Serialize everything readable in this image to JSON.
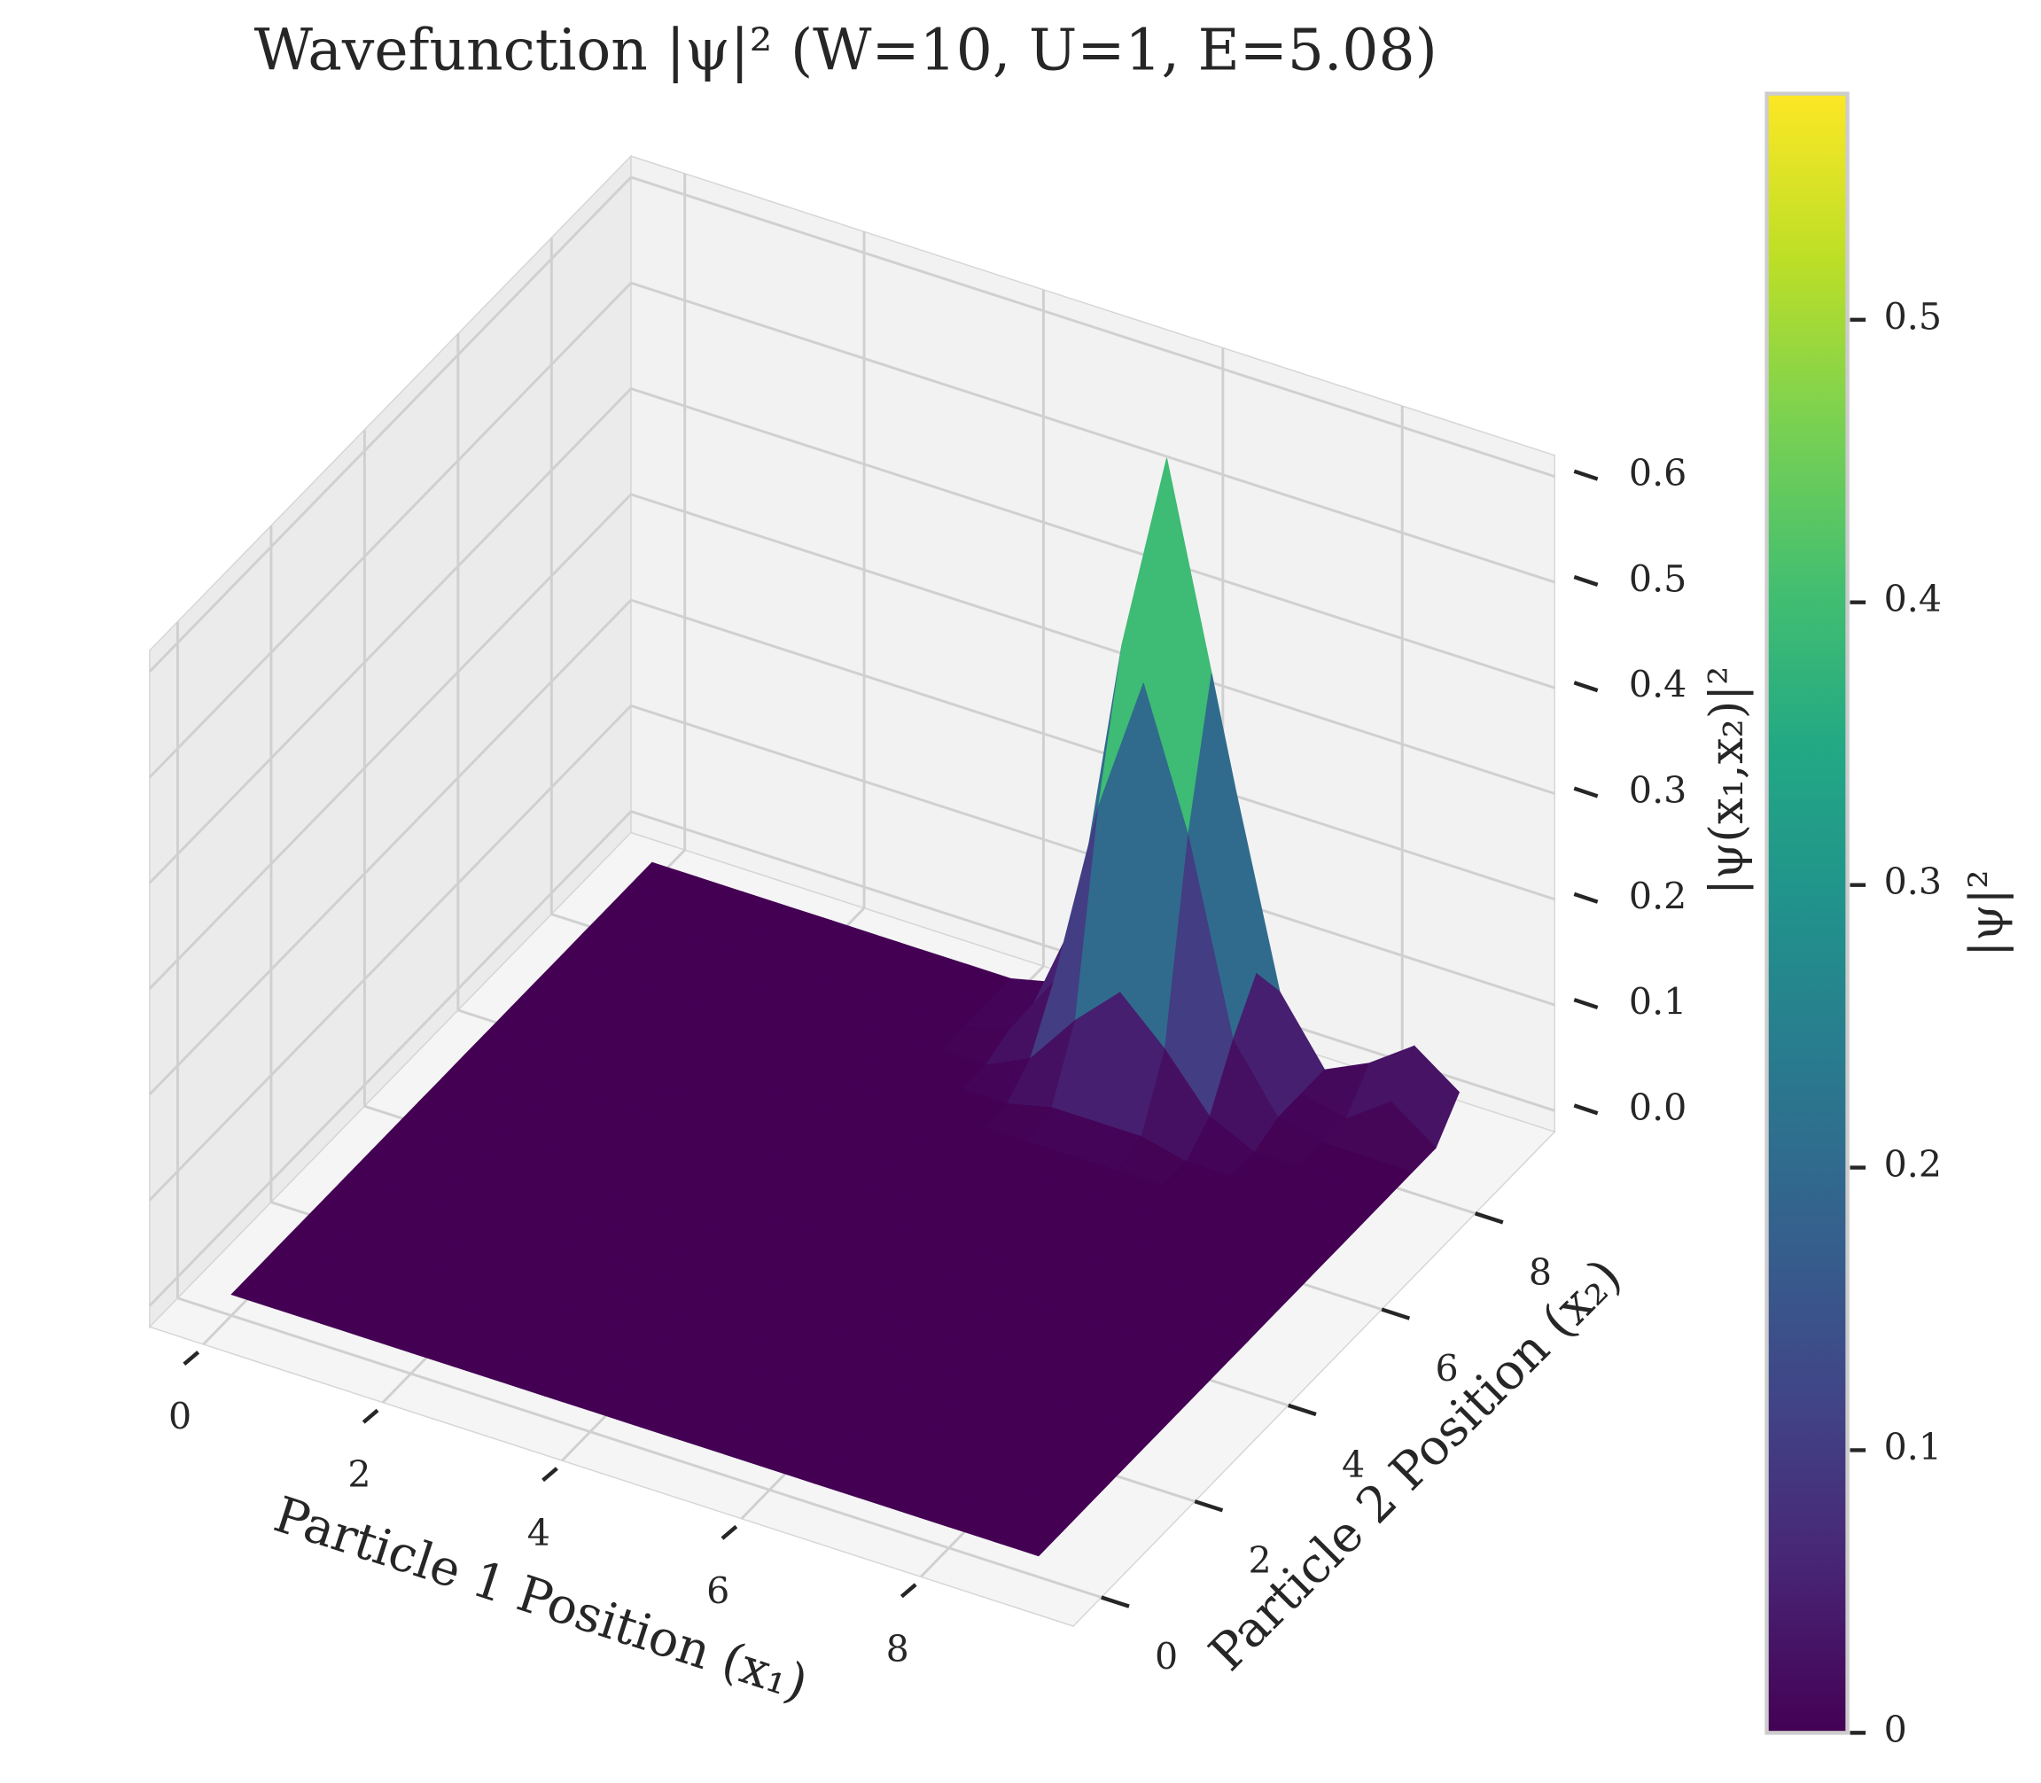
{
  "chart_data": {
    "type": "surface",
    "title": "Wavefunction |ψ|² (W=10, U=1, E=5.08)",
    "xlabel": "Particle 1 Position (x₁)",
    "ylabel": "Particle 2 Position (x₂)",
    "zlabel": "|ψ(x₁,x₂)|²",
    "colorbar_label": "|ψ|²",
    "colormap": "viridis",
    "clim": [
      0,
      0.58
    ],
    "colorbar_ticks": [
      0.0,
      0.1,
      0.2,
      0.3,
      0.4,
      0.5
    ],
    "xlim": [
      -0.6,
      9.7
    ],
    "ylim": [
      -0.6,
      9.7
    ],
    "zlim": [
      -0.02,
      0.62
    ],
    "xticks": [
      0,
      2,
      4,
      6,
      8
    ],
    "yticks": [
      0,
      2,
      4,
      6,
      8
    ],
    "zticks": [
      {
        "value": 0,
        "label": "0.0"
      },
      0.1,
      0.2,
      0.3,
      0.4,
      0.5,
      0.6
    ],
    "x": [
      0,
      0.5,
      1,
      1.5,
      2,
      2.5,
      3,
      3.5,
      4,
      4.5,
      5,
      5.5,
      6,
      6.5,
      7,
      7.5,
      8,
      8.5,
      9
    ],
    "y": [
      0,
      0.5,
      1,
      1.5,
      2,
      2.5,
      3,
      3.5,
      4,
      4.5,
      5,
      5.5,
      6,
      6.5,
      7,
      7.5,
      8,
      8.5,
      9
    ],
    "z": [
      [
        0,
        0,
        0,
        0,
        0,
        0,
        0,
        0,
        0,
        0,
        0,
        0,
        0,
        0,
        0,
        0,
        0,
        0,
        0
      ],
      [
        0,
        0,
        0,
        0,
        0,
        0,
        0,
        0,
        0,
        0,
        0,
        0,
        0,
        0,
        0,
        0,
        0,
        0,
        0
      ],
      [
        0,
        0,
        0,
        0,
        0,
        0,
        0,
        0,
        0,
        0,
        0,
        0,
        0,
        0,
        0,
        0,
        0,
        0,
        0
      ],
      [
        0,
        0,
        0,
        0,
        0,
        0,
        0,
        0,
        0,
        0,
        0,
        0,
        0,
        0,
        0,
        0,
        0,
        0,
        0
      ],
      [
        0,
        0,
        0,
        0,
        0,
        0,
        0,
        0,
        0,
        0,
        0,
        0,
        0,
        0,
        0,
        0,
        0,
        0,
        0
      ],
      [
        0,
        0,
        0,
        0,
        0,
        0,
        0,
        0,
        0,
        0,
        0,
        0,
        0,
        0,
        0,
        0,
        0,
        0,
        0
      ],
      [
        0,
        0,
        0,
        0,
        0,
        0,
        0,
        0,
        0,
        0,
        0,
        0,
        0,
        0,
        0,
        0,
        0,
        0,
        0
      ],
      [
        0,
        0,
        0,
        0,
        0,
        0,
        0,
        0,
        0,
        0,
        0,
        0,
        0,
        0,
        0,
        0,
        0,
        0,
        0
      ],
      [
        0,
        0,
        0,
        0,
        0,
        0,
        0,
        0,
        0,
        0,
        0,
        0,
        0,
        0,
        0,
        0,
        0,
        0,
        0
      ],
      [
        0,
        0,
        0,
        0,
        0,
        0,
        0,
        0,
        0,
        0,
        0,
        0,
        0,
        0,
        0,
        0,
        0,
        0,
        0
      ],
      [
        0,
        0,
        0,
        0,
        0,
        0,
        0,
        0,
        0,
        0,
        0,
        0,
        0,
        0,
        0,
        0,
        0,
        0,
        0
      ],
      [
        0,
        0,
        0,
        0,
        0,
        0,
        0,
        0,
        0,
        0,
        0,
        0,
        0,
        0,
        0,
        0,
        0,
        0,
        0
      ],
      [
        0,
        0,
        0,
        0,
        0,
        0,
        0,
        0,
        0,
        0,
        0,
        0,
        0,
        0,
        0,
        0,
        0,
        0,
        0
      ],
      [
        0,
        0,
        0,
        0,
        0,
        0,
        0,
        0,
        0,
        0,
        0,
        0,
        0,
        0,
        0,
        0,
        0,
        0,
        0
      ],
      [
        0,
        0,
        0,
        0,
        0,
        0,
        0,
        0,
        0,
        0,
        0,
        0.01,
        0.01,
        0.01,
        0,
        0,
        0,
        0,
        0
      ],
      [
        0,
        0,
        0,
        0,
        0,
        0,
        0,
        0,
        0,
        0,
        0.02,
        0.07,
        0.11,
        0.07,
        0.02,
        0,
        0,
        0,
        0
      ],
      [
        0,
        0,
        0,
        0,
        0,
        0,
        0,
        0,
        0,
        0.01,
        0.07,
        0.25,
        0.38,
        0.25,
        0.07,
        0.01,
        0,
        0,
        0
      ],
      [
        0,
        0,
        0,
        0,
        0,
        0,
        0,
        0,
        0,
        0.01,
        0.11,
        0.38,
        0.57,
        0.38,
        0.11,
        0.01,
        0,
        0.03,
        0
      ],
      [
        0,
        0,
        0,
        0,
        0,
        0,
        0,
        0,
        0,
        0.01,
        0.07,
        0.25,
        0.38,
        0.25,
        0.07,
        0.01,
        0.03,
        0.06,
        0.03
      ]
    ]
  }
}
